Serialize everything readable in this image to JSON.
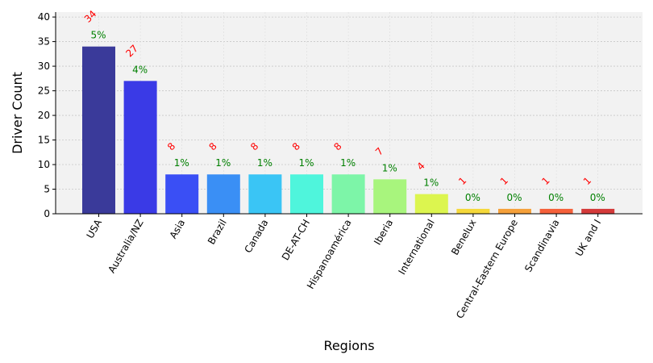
{
  "chart_data": {
    "type": "bar",
    "title": "",
    "xlabel": "Regions",
    "ylabel": "Driver Count",
    "ylim": [
      0,
      41
    ],
    "yticks": [
      0,
      5,
      10,
      15,
      20,
      25,
      30,
      35,
      40
    ],
    "grid": true,
    "categories": [
      "USA",
      "Australia/NZ",
      "Asia",
      "Brazil",
      "Canada",
      "DE-AT-CH",
      "Hispanoamérica",
      "Iberia",
      "International",
      "Benelux",
      "Central-Eastern Europe",
      "Scandinavia",
      "UK and I"
    ],
    "values": [
      34,
      27,
      8,
      8,
      8,
      8,
      8,
      7,
      4,
      1,
      1,
      1,
      1
    ],
    "count_labels": [
      "34",
      "27",
      "8",
      "8",
      "8",
      "8",
      "8",
      "7",
      "4",
      "1",
      "1",
      "1",
      "1"
    ],
    "percent_labels": [
      "5%",
      "4%",
      "1%",
      "1%",
      "1%",
      "1%",
      "1%",
      "1%",
      "1%",
      "0%",
      "0%",
      "0%",
      "0%"
    ],
    "bar_colors": [
      "#3a3a9a",
      "#3a3ae6",
      "#3a4ff5",
      "#3a8ff5",
      "#3ac5f5",
      "#4ff5dc",
      "#7df5a8",
      "#a8f57d",
      "#dcf54f",
      "#f5d83a",
      "#f5a03a",
      "#f5603a",
      "#d43a3a"
    ],
    "count_label_color": "#ff0000",
    "percent_label_color": "#008000",
    "plot_background": "#f2f2f2"
  }
}
